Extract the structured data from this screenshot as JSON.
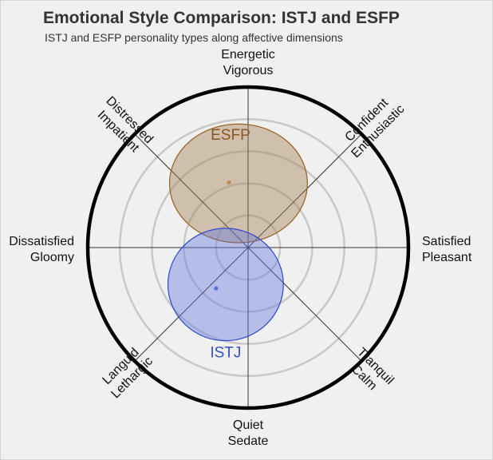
{
  "chart_data": {
    "type": "circumplex",
    "title": "Emotional Style Comparison: ISTJ and ESFP",
    "subtitle": "ISTJ and ESFP personality types along affective dimensions",
    "axes": [
      {
        "angle": 90,
        "lines": [
          "Energetic",
          "Vigorous"
        ]
      },
      {
        "angle": 45,
        "lines": [
          "Confident",
          "Enthusiastic"
        ]
      },
      {
        "angle": 0,
        "lines": [
          "Satisfied",
          "Pleasant"
        ]
      },
      {
        "angle": -45,
        "lines": [
          "Tranquil",
          "Calm"
        ]
      },
      {
        "angle": -90,
        "lines": [
          "Quiet",
          "Sedate"
        ]
      },
      {
        "angle": -135,
        "lines": [
          "Languid",
          "Lethargic"
        ]
      },
      {
        "angle": 180,
        "lines": [
          "Dissatisfied",
          "Gloomy"
        ]
      },
      {
        "angle": 135,
        "lines": [
          "Distressed",
          "Impatient"
        ]
      }
    ],
    "rings": [
      0.2,
      0.4,
      0.6,
      0.8,
      1.0
    ],
    "series": [
      {
        "name": "ESFP",
        "x": -0.06,
        "y": 0.4,
        "rx": 0.43,
        "ry": 0.37,
        "fill": "#a27f52",
        "stroke": "#9a5e1c",
        "dot": "#c08a50",
        "text": "#8a5520"
      },
      {
        "name": "ISTJ",
        "x": -0.14,
        "y": -0.23,
        "rx": 0.36,
        "ry": 0.35,
        "fill": "#6678dd",
        "stroke": "#2c49cc",
        "dot": "#5570e0",
        "text": "#3350c0"
      }
    ]
  }
}
